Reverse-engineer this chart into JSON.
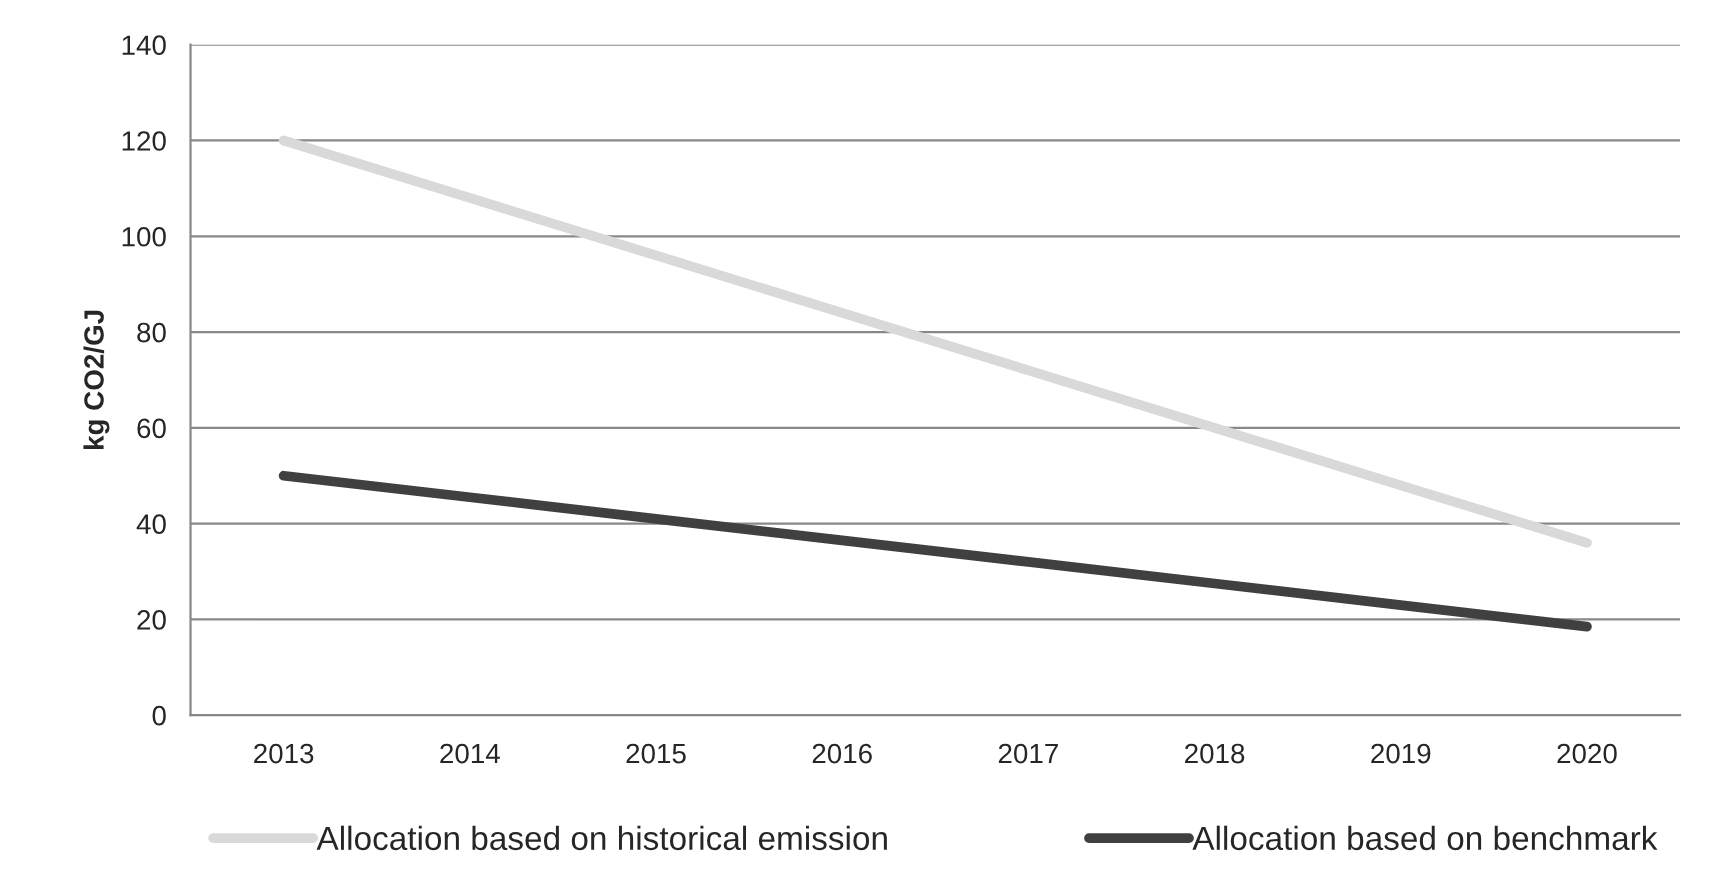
{
  "chart_data": {
    "type": "line",
    "ylabel": "kg CO2/GJ",
    "categories": [
      "2013",
      "2014",
      "2015",
      "2016",
      "2017",
      "2018",
      "2019",
      "2020"
    ],
    "series": [
      {
        "name": "Allocation based on historical emission",
        "color": "#d9d9d9",
        "values": [
          120,
          108,
          96,
          84,
          72,
          60,
          48,
          36
        ]
      },
      {
        "name": "Allocation based on benchmark",
        "color": "#404040",
        "values": [
          50,
          45.5,
          41,
          36.5,
          32,
          27.5,
          23,
          18.5
        ]
      }
    ],
    "ylim": [
      0,
      140
    ],
    "yticks": [
      0,
      20,
      40,
      60,
      80,
      100,
      120,
      140
    ],
    "grid": "y",
    "legend": "bottom",
    "marker": "none",
    "line_style": "solid"
  }
}
